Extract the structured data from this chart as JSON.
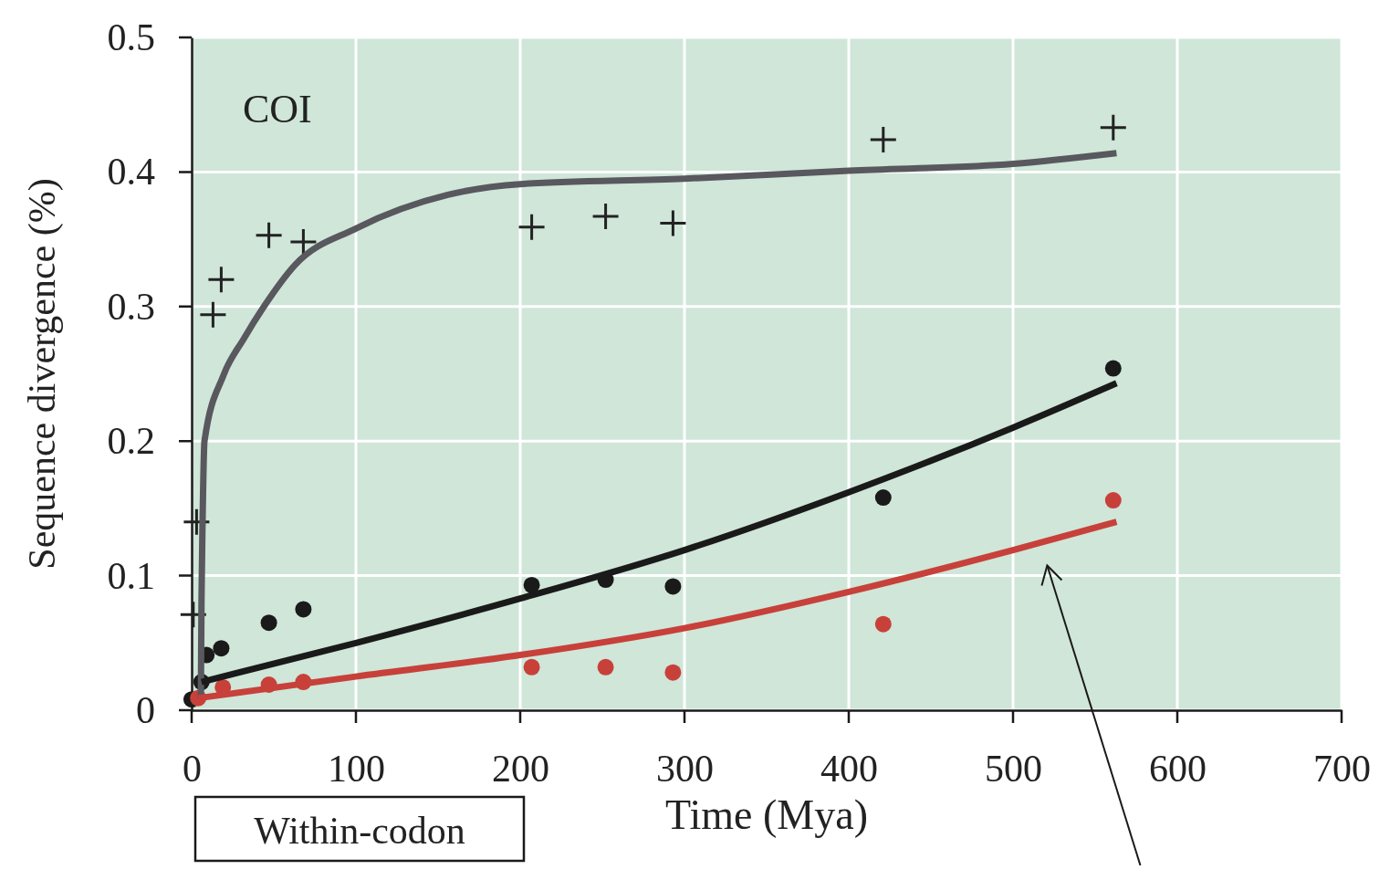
{
  "chart_data": {
    "type": "scatter",
    "xlabel": "Time (Mya)",
    "ylabel": "Sequence divergence (%)",
    "xlim": [
      0,
      700
    ],
    "xticks": [
      0,
      100,
      200,
      300,
      400,
      500,
      600,
      700
    ],
    "ylim": [
      0,
      0.5
    ],
    "yticks": [
      0,
      0.1,
      0.2,
      0.3,
      0.4,
      0.5
    ],
    "grid": true,
    "annotations": [
      "COI",
      "Within-codon"
    ],
    "series": [
      {
        "marker": "cross",
        "color": "#222222",
        "x": [
          1,
          3,
          13,
          18,
          47,
          68,
          207,
          252,
          293,
          421,
          561
        ],
        "values": [
          0.071,
          0.14,
          0.294,
          0.32,
          0.353,
          0.348,
          0.359,
          0.367,
          0.362,
          0.424,
          0.433
        ]
      },
      {
        "marker": "circle",
        "color": "#1a1a1a",
        "x": [
          0,
          6,
          9,
          18,
          47,
          68,
          207,
          252,
          293,
          421,
          561
        ],
        "values": [
          0.008,
          0.021,
          0.041,
          0.046,
          0.065,
          0.075,
          0.093,
          0.097,
          0.092,
          0.158,
          0.254
        ]
      },
      {
        "marker": "circle",
        "color": "#c8403a",
        "x": [
          4,
          19,
          47,
          68,
          207,
          252,
          293,
          421,
          561
        ],
        "values": [
          0.009,
          0.017,
          0.019,
          0.021,
          0.032,
          0.032,
          0.028,
          0.064,
          0.156
        ]
      },
      {
        "type": "line",
        "marker": "none",
        "color": "#58585e",
        "x": [
          5.6,
          6,
          6.7,
          7.8,
          19.4,
          31.7,
          44,
          63,
          100,
          156,
          200,
          300,
          400,
          500,
          563
        ],
        "values": [
          0.009,
          0.082,
          0.144,
          0.2,
          0.249,
          0.276,
          0.3,
          0.331,
          0.358,
          0.383,
          0.391,
          0.395,
          0.401,
          0.406,
          0.414
        ]
      },
      {
        "type": "line",
        "marker": "none",
        "color": "#1a1a1a",
        "x": [
          6,
          100,
          200,
          300,
          400,
          500,
          563
        ],
        "values": [
          0.021,
          0.05,
          0.083,
          0.119,
          0.162,
          0.21,
          0.243
        ]
      },
      {
        "type": "line",
        "marker": "none",
        "color": "#c8403a",
        "x": [
          4,
          100,
          200,
          300,
          400,
          500,
          563
        ],
        "values": [
          0.009,
          0.025,
          0.041,
          0.061,
          0.088,
          0.119,
          0.14
        ]
      }
    ]
  }
}
